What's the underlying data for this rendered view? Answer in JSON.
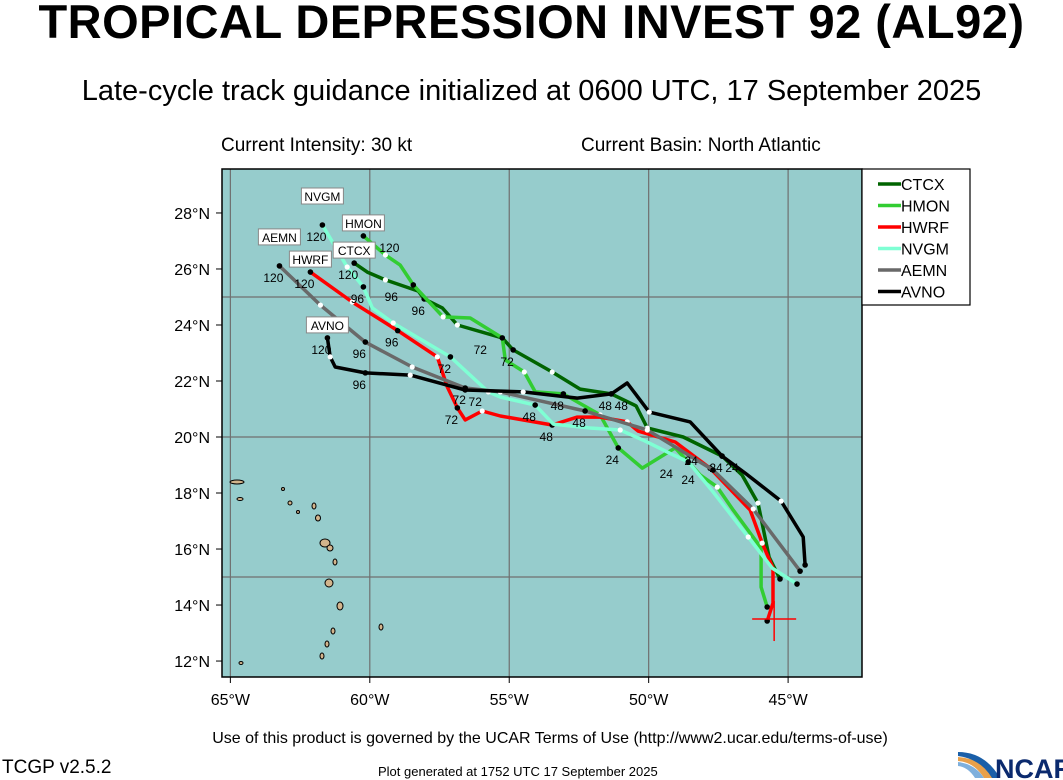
{
  "header": {
    "title": "TROPICAL DEPRESSION INVEST 92 (AL92)",
    "subtitle": "Late-cycle track guidance initialized at 0600 UTC, 17 September 2025",
    "intensity": "Current Intensity: 30 kt",
    "basin": "Current Basin: North Atlantic"
  },
  "footer": {
    "terms": "Use of this product is governed by the UCAR Terms of Use (http://www2.ucar.edu/terms-of-use)",
    "version": "TCGP v2.5.2",
    "generated": "Plot generated at 1752 UTC   17 September 2025",
    "logo": "NCAR"
  },
  "colors": {
    "ocean": "#96cccc",
    "land": "#d2b48c",
    "grid": "#6f6f6f",
    "current_position": "#ff0000"
  },
  "chart_data": {
    "type": "line",
    "title": "Track guidance",
    "lon_range": [
      -65.3,
      -42.35
    ],
    "lat_range": [
      11.43,
      29.57
    ],
    "x_ticks": [
      {
        "v": -65,
        "label": "65°W"
      },
      {
        "v": -60,
        "label": "60°W"
      },
      {
        "v": -55,
        "label": "55°W"
      },
      {
        "v": -50,
        "label": "50°W"
      },
      {
        "v": -45,
        "label": "45°W"
      }
    ],
    "y_ticks": [
      {
        "v": 28,
        "label": "28°N"
      },
      {
        "v": 26,
        "label": "26°N"
      },
      {
        "v": 24,
        "label": "24°N"
      },
      {
        "v": 22,
        "label": "22°N"
      },
      {
        "v": 20,
        "label": "20°N"
      },
      {
        "v": 18,
        "label": "18°N"
      },
      {
        "v": 16,
        "label": "16°N"
      },
      {
        "v": 14,
        "label": "14°N"
      },
      {
        "v": 12,
        "label": "12°N"
      }
    ],
    "grid_lon": [
      -65,
      -60,
      -55,
      -50,
      -45
    ],
    "grid_lat": [
      25,
      20,
      15
    ],
    "legend_position": "right",
    "current_position": {
      "lon": -45.5,
      "lat": 13.5
    },
    "series": [
      {
        "name": "CTCX",
        "color": "#006400",
        "points": [
          [
            -45.29,
            14.93
          ],
          [
            -45.68,
            15.71
          ],
          [
            -46.08,
            17.64
          ],
          [
            -46.65,
            18.64
          ],
          [
            -47.37,
            19.32
          ],
          [
            -48.76,
            20.0
          ],
          [
            -50.05,
            20.32
          ],
          [
            -50.45,
            21.11
          ],
          [
            -51.34,
            21.54
          ],
          [
            -52.46,
            21.71
          ],
          [
            -53.46,
            22.32
          ],
          [
            -54.86,
            23.11
          ],
          [
            -55.25,
            23.54
          ],
          [
            -56.86,
            24.0
          ],
          [
            -57.4,
            24.61
          ],
          [
            -58.05,
            24.93
          ],
          [
            -58.26,
            25.21
          ],
          [
            -59.44,
            25.61
          ],
          [
            -60.09,
            25.89
          ],
          [
            -60.56,
            26.21
          ]
        ],
        "markers": [
          {
            "i": 0,
            "label": ""
          },
          {
            "i": 4,
            "label": "24"
          },
          {
            "i": 8,
            "label": "48"
          },
          {
            "i": 11,
            "label": "72"
          },
          {
            "i": 15,
            "label": "96"
          },
          {
            "i": 19,
            "label": "120"
          }
        ]
      },
      {
        "name": "HMON",
        "color": "#32cd32",
        "points": [
          [
            -45.75,
            13.93
          ],
          [
            -45.97,
            14.64
          ],
          [
            -45.97,
            16.04
          ],
          [
            -46.97,
            17.39
          ],
          [
            -47.54,
            18.21
          ],
          [
            -48.15,
            18.64
          ],
          [
            -49.05,
            19.61
          ],
          [
            -50.23,
            18.89
          ],
          [
            -51.09,
            19.61
          ],
          [
            -51.74,
            20.79
          ],
          [
            -53.06,
            21.54
          ],
          [
            -54.07,
            21.61
          ],
          [
            -54.46,
            22.32
          ],
          [
            -55.14,
            22.75
          ],
          [
            -55.25,
            23.54
          ],
          [
            -56.4,
            24.25
          ],
          [
            -57.37,
            24.29
          ],
          [
            -58.44,
            25.43
          ],
          [
            -58.91,
            26.14
          ],
          [
            -59.44,
            26.5
          ],
          [
            -60.23,
            27.18
          ]
        ],
        "markers": [
          {
            "i": 0,
            "label": ""
          },
          {
            "i": 8,
            "label": "24"
          },
          {
            "i": 10,
            "label": "48"
          },
          {
            "i": 14,
            "label": "72"
          },
          {
            "i": 17,
            "label": "96"
          },
          {
            "i": 20,
            "label": "120"
          }
        ]
      },
      {
        "name": "HWRF",
        "color": "#ff0000",
        "points": [
          [
            -45.75,
            13.43
          ],
          [
            -45.54,
            14.07
          ],
          [
            -45.54,
            15.32
          ],
          [
            -45.93,
            16.21
          ],
          [
            -46.36,
            17.39
          ],
          [
            -47.8,
            18.89
          ],
          [
            -49.05,
            19.82
          ],
          [
            -50.38,
            20.21
          ],
          [
            -50.77,
            20.54
          ],
          [
            -51.74,
            20.71
          ],
          [
            -52.56,
            20.71
          ],
          [
            -53.46,
            20.43
          ],
          [
            -55.32,
            20.75
          ],
          [
            -55.97,
            20.93
          ],
          [
            -56.58,
            20.61
          ],
          [
            -56.86,
            21.04
          ],
          [
            -57.22,
            21.79
          ],
          [
            -57.58,
            22.86
          ],
          [
            -59.0,
            23.8
          ],
          [
            -60.63,
            24.82
          ],
          [
            -62.13,
            25.89
          ]
        ],
        "markers": [
          {
            "i": 0,
            "label": ""
          },
          {
            "i": 5,
            "label": "24"
          },
          {
            "i": 11,
            "label": "48"
          },
          {
            "i": 15,
            "label": "72"
          },
          {
            "i": 18,
            "label": "96"
          },
          {
            "i": 20,
            "label": "120"
          }
        ]
      },
      {
        "name": "NVGM",
        "color": "#7fffd4",
        "points": [
          [
            -44.68,
            14.75
          ],
          [
            -45.57,
            15.32
          ],
          [
            -46.43,
            16.43
          ],
          [
            -47.69,
            18.04
          ],
          [
            -48.58,
            19.11
          ],
          [
            -49.12,
            19.36
          ],
          [
            -50.2,
            19.89
          ],
          [
            -51.02,
            20.25
          ],
          [
            -52.1,
            20.32
          ],
          [
            -53.42,
            20.46
          ],
          [
            -54.07,
            21.14
          ],
          [
            -55.32,
            21.43
          ],
          [
            -55.75,
            21.61
          ],
          [
            -57.11,
            22.86
          ],
          [
            -58.55,
            23.71
          ],
          [
            -59.16,
            24.07
          ],
          [
            -59.91,
            24.61
          ],
          [
            -60.23,
            25.36
          ],
          [
            -60.81,
            26.07
          ],
          [
            -61.7,
            27.57
          ]
        ],
        "markers": [
          {
            "i": 0,
            "label": ""
          },
          {
            "i": 4,
            "label": "24"
          },
          {
            "i": 10,
            "label": "48"
          },
          {
            "i": 13,
            "label": "72"
          },
          {
            "i": 17,
            "label": "96"
          },
          {
            "i": 19,
            "label": "120"
          }
        ]
      },
      {
        "name": "AEMN",
        "color": "#696969",
        "points": [
          [
            -44.57,
            15.21
          ],
          [
            -46.25,
            17.43
          ],
          [
            -47.69,
            18.82
          ],
          [
            -50.05,
            20.25
          ],
          [
            -52.28,
            20.93
          ],
          [
            -55.32,
            21.61
          ],
          [
            -56.58,
            21.75
          ],
          [
            -58.48,
            22.5
          ],
          [
            -60.16,
            23.39
          ],
          [
            -61.77,
            24.71
          ],
          [
            -63.24,
            26.11
          ]
        ],
        "markers": [
          {
            "i": 0,
            "label": ""
          },
          {
            "i": 2,
            "label": "24"
          },
          {
            "i": 4,
            "label": "48"
          },
          {
            "i": 6,
            "label": "72"
          },
          {
            "i": 8,
            "label": "96"
          },
          {
            "i": 10,
            "label": "120"
          }
        ]
      },
      {
        "name": "AVNO",
        "color": "#000000",
        "points": [
          [
            -44.39,
            15.43
          ],
          [
            -44.46,
            16.43
          ],
          [
            -45.25,
            17.71
          ],
          [
            -46.54,
            18.71
          ],
          [
            -47.37,
            19.32
          ],
          [
            -48.51,
            20.54
          ],
          [
            -49.98,
            20.89
          ],
          [
            -50.77,
            21.93
          ],
          [
            -51.34,
            21.54
          ],
          [
            -52.56,
            21.39
          ],
          [
            -54.5,
            21.61
          ],
          [
            -56.58,
            21.68
          ],
          [
            -58.55,
            22.21
          ],
          [
            -60.16,
            22.29
          ],
          [
            -61.24,
            22.5
          ],
          [
            -61.42,
            22.86
          ],
          [
            -61.52,
            23.54
          ]
        ],
        "markers": [
          {
            "i": 0,
            "label": ""
          },
          {
            "i": 4,
            "label": "24"
          },
          {
            "i": 8,
            "label": "48"
          },
          {
            "i": 11,
            "label": "72"
          },
          {
            "i": 13,
            "label": "96"
          },
          {
            "i": 16,
            "label": "120"
          }
        ]
      }
    ]
  }
}
